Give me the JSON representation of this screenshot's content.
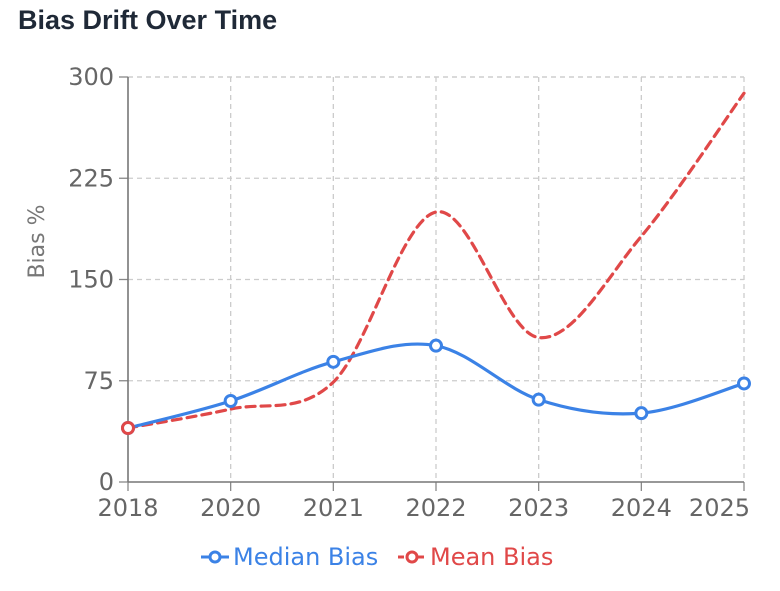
{
  "title": "Bias Drift Over Time",
  "chart_data": {
    "type": "line",
    "title": "Bias Drift Over Time",
    "xlabel": "",
    "ylabel": "Bias %",
    "categories": [
      "2018",
      "2020",
      "2021",
      "2022",
      "2023",
      "2024",
      "2025"
    ],
    "ylim": [
      0,
      300
    ],
    "yticks": [
      0,
      75,
      150,
      225,
      300
    ],
    "grid": true,
    "legend_position": "bottom-center",
    "series": [
      {
        "name": "Median Bias",
        "color": "#3b82e6",
        "dashed": false,
        "values": [
          40,
          60,
          89,
          101,
          61,
          51,
          73
        ]
      },
      {
        "name": "Mean Bias",
        "color": "#e04848",
        "dashed": true,
        "values": [
          40,
          54,
          74,
          200,
          107,
          182,
          288
        ]
      }
    ]
  }
}
